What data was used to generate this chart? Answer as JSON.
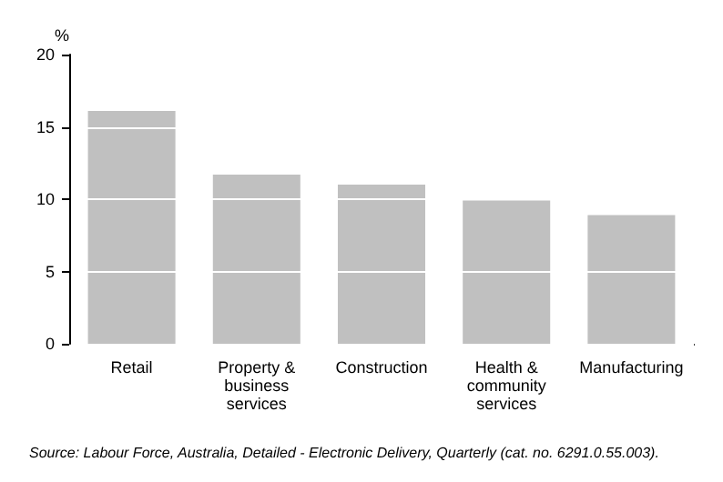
{
  "chart_data": {
    "type": "bar",
    "ylabel": "%",
    "categories": [
      "Retail",
      "Property &\nbusiness\nservices",
      "Construction",
      "Health &\ncommunity\nservices",
      "Manufacturing"
    ],
    "values": [
      16.1,
      11.7,
      11.0,
      9.9,
      8.9
    ],
    "color": "#c0c0c0",
    "ylim": [
      0,
      20
    ],
    "yticks": [
      0,
      5,
      10,
      15,
      20
    ],
    "grid": "y",
    "annotations": [
      "Source: Labour Force, Australia, Detailed - Electronic Delivery, Quarterly (cat. no. 6291.0.55.003)."
    ]
  }
}
